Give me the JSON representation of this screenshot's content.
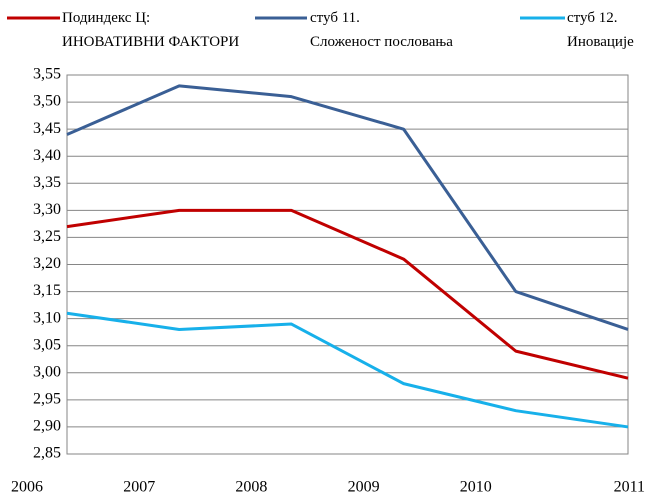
{
  "chart_data": {
    "type": "line",
    "categories": [
      "2006",
      "2007",
      "2008",
      "2009",
      "2010",
      "2011"
    ],
    "series": [
      {
        "name": "Подиндекс Ц:\nИНОВАТИВНИ ФАКТОРИ",
        "color": "#c00000",
        "values": [
          3.27,
          3.3,
          3.3,
          3.21,
          3.04,
          2.99
        ]
      },
      {
        "name": "стуб 11.\nСложеност пословања",
        "color": "#3a5f95",
        "values": [
          3.44,
          3.53,
          3.51,
          3.45,
          3.15,
          3.08
        ]
      },
      {
        "name": "стуб 12.\nИновације",
        "color": "#17b0ea",
        "values": [
          3.11,
          3.08,
          3.09,
          2.98,
          2.93,
          2.9
        ]
      }
    ],
    "ylim": [
      2.85,
      3.55
    ],
    "yticks": [
      {
        "value": 2.85,
        "label": "2,85"
      },
      {
        "value": 2.9,
        "label": "2,90"
      },
      {
        "value": 2.95,
        "label": "2,95"
      },
      {
        "value": 3.0,
        "label": "3,00"
      },
      {
        "value": 3.05,
        "label": "3,05"
      },
      {
        "value": 3.1,
        "label": "3,10"
      },
      {
        "value": 3.15,
        "label": "3,15"
      },
      {
        "value": 3.2,
        "label": "3,20"
      },
      {
        "value": 3.25,
        "label": "3,25"
      },
      {
        "value": 3.3,
        "label": "3,30"
      },
      {
        "value": 3.35,
        "label": "3,35"
      },
      {
        "value": 3.4,
        "label": "3,40"
      },
      {
        "value": 3.45,
        "label": "3,45"
      },
      {
        "value": 3.5,
        "label": "3,50"
      },
      {
        "value": 3.55,
        "label": "3,55"
      }
    ],
    "grid": true,
    "legend": "top"
  }
}
